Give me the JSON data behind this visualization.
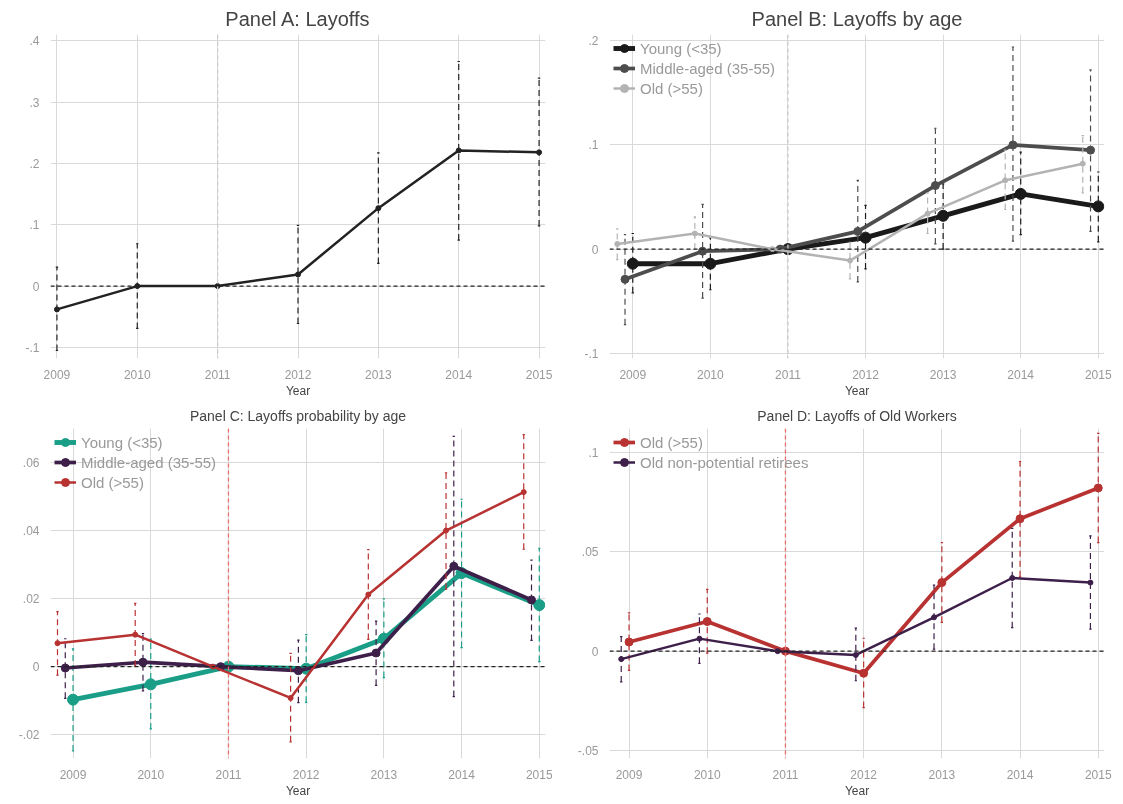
{
  "chart_data": [
    {
      "type": "line",
      "title": "Panel A: Layoffs",
      "xlabel": "Year",
      "x": [
        2009,
        2010,
        2011,
        2012,
        2013,
        2014,
        2015
      ],
      "xlim": [
        2008.92,
        2015.08
      ],
      "ylim": [
        -0.118,
        0.41
      ],
      "xticks": [
        2009,
        2010,
        2011,
        2012,
        2013,
        2014,
        2015
      ],
      "yticks": [
        {
          "value": -0.1,
          "label": "-.1"
        },
        0,
        {
          "value": 0.1,
          "label": ".1"
        },
        {
          "value": 0.2,
          "label": ".2"
        },
        {
          "value": 0.3,
          "label": ".3"
        },
        {
          "value": 0.4,
          "label": ".4"
        }
      ],
      "grid": true,
      "marker": "circle",
      "line_style": "solid",
      "legend": false,
      "ref_lines": [
        {
          "axis": "y",
          "value": 0,
          "color": "#222222",
          "line_style": "dashed"
        },
        {
          "axis": "x",
          "value": 2011,
          "color": "#cccccc",
          "line_style": "dashed"
        }
      ],
      "series": [
        {
          "color": "#222222",
          "values": [
            -0.038,
            0,
            0,
            0.019,
            0.127,
            0.221,
            0.218
          ],
          "errors": [
            [
              -0.105,
              0.031
            ],
            [
              -0.069,
              0.069
            ],
            null,
            [
              -0.061,
              0.099
            ],
            [
              0.037,
              0.217
            ],
            [
              0.075,
              0.366
            ],
            [
              0.098,
              0.339
            ]
          ]
        }
      ]
    },
    {
      "type": "line",
      "title": "Panel B: Layoffs by age",
      "xlabel": "Year",
      "xlim": [
        2008.7,
        2015.08
      ],
      "ylim": [
        -0.105,
        0.206
      ],
      "xticks": [
        2009,
        2010,
        2011,
        2012,
        2013,
        2014,
        2015
      ],
      "yticks": [
        {
          "value": -0.1,
          "label": "-.1"
        },
        0,
        {
          "value": 0.1,
          "label": ".1"
        },
        {
          "value": 0.2,
          "label": ".2"
        }
      ],
      "grid": true,
      "marker": "circle",
      "line_style": "solid",
      "legend": "top left",
      "ref_lines": [
        {
          "axis": "y",
          "value": 0,
          "color": "#222222",
          "line_style": "dashed"
        },
        {
          "axis": "x",
          "value": 2011,
          "color": "#cccccc",
          "line_style": "dashed"
        }
      ],
      "series": [
        {
          "name": "Young (<35)",
          "color": "#1a1a1a",
          "x": [
            2009,
            2010,
            2011,
            2012,
            2013,
            2014,
            2015
          ],
          "values": [
            -0.014,
            -0.014,
            0,
            0.011,
            0.032,
            0.053,
            0.041
          ],
          "errors": [
            [
              -0.042,
              0.015
            ],
            [
              -0.039,
              0.011
            ],
            null,
            [
              -0.019,
              0.042
            ],
            [
              0.0,
              0.0626
            ],
            [
              0.014,
              0.093
            ],
            [
              0.007,
              0.074
            ]
          ]
        },
        {
          "name": "Middle-aged (35-55)",
          "color": "#4d4d4d",
          "x": [
            2008.9,
            2009.9,
            2010.9,
            2011.9,
            2012.9,
            2013.9,
            2014.9
          ],
          "values": [
            -0.029,
            -0.002,
            0,
            0.017,
            0.061,
            0.1,
            0.095
          ],
          "errors": [
            [
              -0.0725,
              0.014
            ],
            [
              -0.047,
              0.043
            ],
            null,
            [
              -0.0315,
              0.066
            ],
            [
              0.005,
              0.116
            ],
            [
              0.0077,
              0.194
            ],
            [
              0.017,
              0.172
            ]
          ]
        },
        {
          "name": "Old (>55)",
          "color": "#b3b3b3",
          "x": [
            2008.8,
            2009.8,
            2010.8,
            2011.8,
            2012.8,
            2013.8,
            2014.8
          ],
          "values": [
            0.005,
            0.015,
            0,
            -0.011,
            0.034,
            0.066,
            0.082
          ],
          "errors": [
            [
              -0.01,
              0.0194
            ],
            [
              0,
              0.031
            ],
            null,
            [
              -0.0286,
              0.0066
            ],
            [
              0.015,
              0.054
            ],
            [
              0.038,
              0.095
            ],
            [
              0.054,
              0.109
            ]
          ]
        }
      ]
    },
    {
      "type": "line",
      "title": "Panel C: Layoffs probability by age",
      "xlabel": "Year",
      "xlim": [
        2008.71,
        2015.08
      ],
      "ylim": [
        -0.027,
        0.07
      ],
      "xticks": [
        2009,
        2010,
        2011,
        2012,
        2013,
        2014,
        2015
      ],
      "yticks": [
        {
          "value": -0.02,
          "label": "-.02"
        },
        0,
        {
          "value": 0.02,
          "label": ".02"
        },
        {
          "value": 0.04,
          "label": ".04"
        },
        {
          "value": 0.06,
          "label": ".06"
        }
      ],
      "grid": true,
      "marker": "circle",
      "line_style": "solid",
      "legend": "top left",
      "ref_lines": [
        {
          "axis": "y",
          "value": 0,
          "color": "#222222",
          "line_style": "dashed"
        },
        {
          "axis": "x",
          "value": 2011,
          "color": "#e8706a",
          "line_style": "dashed"
        }
      ],
      "series": [
        {
          "name": "Young (<35)",
          "color": "#1a9e87",
          "x": [
            2009,
            2010,
            2011,
            2012,
            2013,
            2014,
            2015
          ],
          "values": [
            -0.0097,
            -0.0052,
            0,
            -0.0006,
            0.0082,
            0.0275,
            0.0181
          ],
          "errors": [
            [
              -0.0248,
              0.0052
            ],
            [
              -0.0183,
              0.0081
            ],
            null,
            [
              -0.0105,
              0.0094
            ],
            [
              -0.0032,
              0.0199
            ],
            [
              0.0056,
              0.0492
            ],
            [
              0.0015,
              0.0348
            ]
          ]
        },
        {
          "name": "Middle-aged (35-55)",
          "color": "#3d1f4a",
          "x": [
            2008.9,
            2009.9,
            2010.9,
            2011.9,
            2012.9,
            2013.9,
            2014.9
          ],
          "values": [
            -0.0004,
            0.0013,
            0,
            -0.0012,
            0.004,
            0.0295,
            0.0196
          ],
          "errors": [
            [
              -0.0093,
              0.0082
            ],
            [
              -0.0071,
              0.0097
            ],
            null,
            [
              -0.0106,
              0.0078
            ],
            [
              -0.0055,
              0.0134
            ],
            [
              -0.0088,
              0.0677
            ],
            [
              0.0077,
              0.0313
            ]
          ]
        },
        {
          "name": "Old (>55)",
          "color": "#b83232",
          "x": [
            2008.8,
            2009.8,
            2010.8,
            2011.8,
            2012.8,
            2013.8,
            2014.8
          ],
          "values": [
            0.0069,
            0.0094,
            0,
            -0.0092,
            0.0212,
            0.04,
            0.0513
          ],
          "errors": [
            [
              -0.0025,
              0.0162
            ],
            [
              0.0002,
              0.0186
            ],
            null,
            [
              -0.0221,
              0.0039
            ],
            [
              0.008,
              0.0344
            ],
            [
              0.0228,
              0.057
            ],
            [
              0.0345,
              0.0682
            ]
          ]
        }
      ]
    },
    {
      "type": "line",
      "title": "Panel D: Layoffs of Old Workers",
      "xlabel": "Year",
      "xlim": [
        2008.75,
        2015.08
      ],
      "ylim": [
        -0.054,
        0.112
      ],
      "xticks": [
        2009,
        2010,
        2011,
        2012,
        2013,
        2014,
        2015
      ],
      "yticks": [
        {
          "value": -0.05,
          "label": "-.05"
        },
        0,
        {
          "value": 0.05,
          "label": ".05"
        },
        {
          "value": 0.1,
          "label": ".1"
        }
      ],
      "grid": true,
      "marker": "circle",
      "line_style": "solid",
      "legend": "top left",
      "ref_lines": [
        {
          "axis": "y",
          "value": 0,
          "color": "#222222",
          "line_style": "dashed"
        },
        {
          "axis": "x",
          "value": 2011,
          "color": "#e8706a",
          "line_style": "dashed"
        }
      ],
      "series": [
        {
          "name": "Old (>55)",
          "color": "#b83232",
          "x": [
            2009,
            2010,
            2011,
            2012,
            2013,
            2014,
            2015
          ],
          "values": [
            0.0046,
            0.0149,
            0,
            -0.0111,
            0.0345,
            0.0666,
            0.0821
          ],
          "errors": [
            [
              -0.0097,
              0.0193
            ],
            [
              -0.001,
              0.0311
            ],
            null,
            [
              -0.0284,
              0.0065
            ],
            [
              0.0145,
              0.0546
            ],
            [
              0.0374,
              0.0954
            ],
            [
              0.0546,
              0.1095
            ]
          ]
        },
        {
          "name": "Old non-potential retirees",
          "color": "#3d1f4a",
          "x": [
            2008.9,
            2009.9,
            2010.9,
            2011.9,
            2012.9,
            2013.9,
            2014.9
          ],
          "values": [
            -0.004,
            0.0063,
            0,
            -0.0019,
            0.017,
            0.0368,
            0.0345
          ],
          "errors": [
            [
              -0.0155,
              0.0073
            ],
            [
              -0.0061,
              0.0187
            ],
            null,
            [
              -0.0149,
              0.0116
            ],
            [
              0.001,
              0.0332
            ],
            [
              0.0118,
              0.0618
            ],
            [
              0.0111,
              0.058
            ]
          ]
        }
      ]
    }
  ]
}
